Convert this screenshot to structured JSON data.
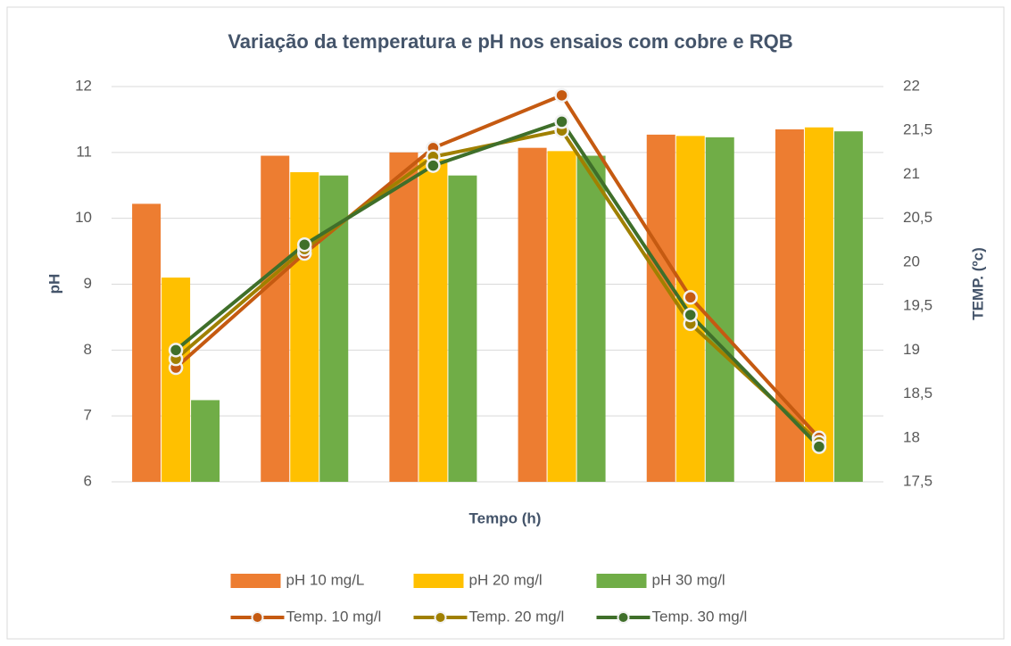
{
  "chart_data": {
    "type": "bar",
    "title": "Variação da temperatura e pH nos ensaios com cobre e RQB",
    "x_label": "Tempo (h)",
    "y_label": "pH",
    "y2_label": "TEMP. (ºc)",
    "categories": [
      null,
      null,
      null,
      null,
      null,
      null
    ],
    "ylim": [
      6,
      12
    ],
    "yticks": [
      6,
      7,
      8,
      9,
      10,
      11,
      12
    ],
    "y2lim": [
      17.5,
      22
    ],
    "y2ticks": [
      {
        "value": 17.5,
        "label": "17,5"
      },
      18,
      {
        "value": 18.5,
        "label": "18,5"
      },
      19,
      {
        "value": 19.5,
        "label": "19,5"
      },
      20,
      {
        "value": 20.5,
        "label": "20,5"
      },
      21,
      {
        "value": 21.5,
        "label": "21,5"
      },
      22
    ],
    "grid": true,
    "series": [
      {
        "name": "pH 10 mg/L",
        "type": "bar",
        "color": "#ed7d31",
        "values": [
          10.22,
          10.95,
          11.0,
          11.07,
          11.27,
          11.35
        ]
      },
      {
        "name": "pH 20 mg/l",
        "type": "bar",
        "color": "#ffc000",
        "values": [
          9.1,
          10.7,
          10.9,
          11.02,
          11.25,
          11.38
        ]
      },
      {
        "name": "pH 30 mg/l",
        "type": "bar",
        "color": "#70ad47",
        "values": [
          7.24,
          10.65,
          10.65,
          10.95,
          11.23,
          11.32
        ]
      },
      {
        "name": "Temp. 10 mg/l",
        "type": "line",
        "axis": "y2",
        "color": "#c55a11",
        "values": [
          18.8,
          20.1,
          21.3,
          21.9,
          19.6,
          18.0
        ]
      },
      {
        "name": "Temp. 20 mg/l",
        "type": "line",
        "axis": "y2",
        "color": "#a08000",
        "values": [
          18.9,
          20.15,
          21.2,
          21.5,
          19.3,
          17.95
        ]
      },
      {
        "name": "Temp. 30 mg/l",
        "type": "line",
        "axis": "y2",
        "color": "#3f6f2a",
        "values": [
          19.0,
          20.2,
          21.1,
          21.6,
          19.4,
          17.9
        ]
      }
    ]
  }
}
